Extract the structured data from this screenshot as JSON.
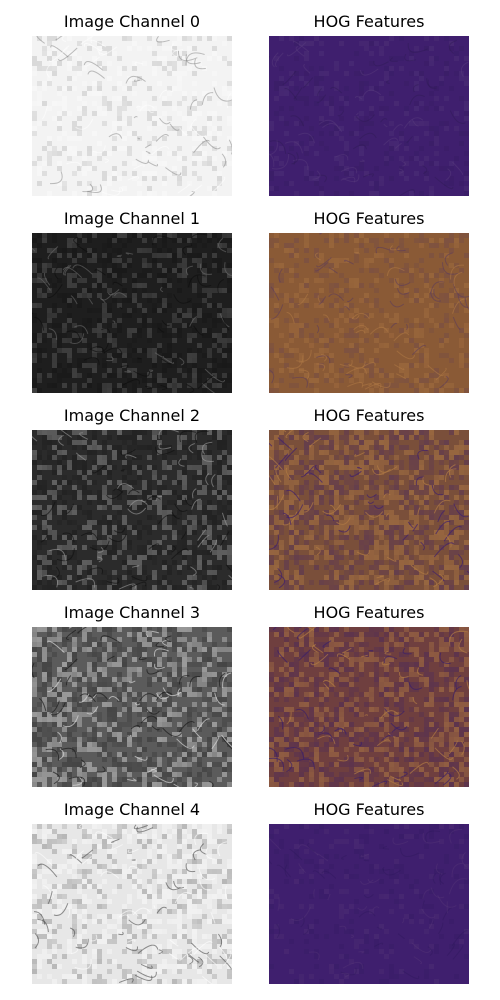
{
  "panels": [
    {
      "row": 0,
      "channel": {
        "title": "Image Channel 0",
        "texture": {
          "base": "#f3f3f3",
          "dark": "#8a8a8a",
          "light": "#ffffff",
          "contrast": 0.35,
          "alpha": 0.55
        }
      },
      "hog": {
        "title": "HOG Features",
        "texture": {
          "base": "#3f1f6e",
          "dark": "#2e1a55",
          "light": "#5a3f7f",
          "contrast": 0.25,
          "alpha": 0.45
        }
      }
    },
    {
      "row": 1,
      "channel": {
        "title": "Image Channel 1",
        "texture": {
          "base": "#1e1e1e",
          "dark": "#0d0d0d",
          "light": "#6b6b6b",
          "contrast": 0.45,
          "alpha": 0.6
        }
      },
      "hog": {
        "title": "HOG Features",
        "texture": {
          "base": "#8a5a36",
          "dark": "#5a3a5f",
          "light": "#b07a45",
          "contrast": 0.35,
          "alpha": 0.55
        }
      }
    },
    {
      "row": 2,
      "channel": {
        "title": "Image Channel 2",
        "texture": {
          "base": "#2b2b2b",
          "dark": "#101010",
          "light": "#9a9a9a",
          "contrast": 0.55,
          "alpha": 0.62
        }
      },
      "hog": {
        "title": "HOG Features",
        "texture": {
          "base": "#7a4f3a",
          "dark": "#3f1f6e",
          "light": "#b07a45",
          "contrast": 0.65,
          "alpha": 0.7
        }
      }
    },
    {
      "row": 3,
      "channel": {
        "title": "Image Channel 3",
        "texture": {
          "base": "#5b5b5b",
          "dark": "#1a1a1a",
          "light": "#d8d8d8",
          "contrast": 0.6,
          "alpha": 0.68
        }
      },
      "hog": {
        "title": "HOG Features",
        "texture": {
          "base": "#6f3f3f",
          "dark": "#3a1f6a",
          "light": "#b07a45",
          "contrast": 0.62,
          "alpha": 0.7
        }
      }
    },
    {
      "row": 4,
      "channel": {
        "title": "Image Channel 4",
        "texture": {
          "base": "#e7e7e7",
          "dark": "#4a4a4a",
          "light": "#ffffff",
          "contrast": 0.5,
          "alpha": 0.6
        }
      },
      "hog": {
        "title": "HOG Features",
        "texture": {
          "base": "#3f1f6e",
          "dark": "#2b185a",
          "light": "#5b3c7a",
          "contrast": 0.2,
          "alpha": 0.35
        }
      }
    }
  ]
}
